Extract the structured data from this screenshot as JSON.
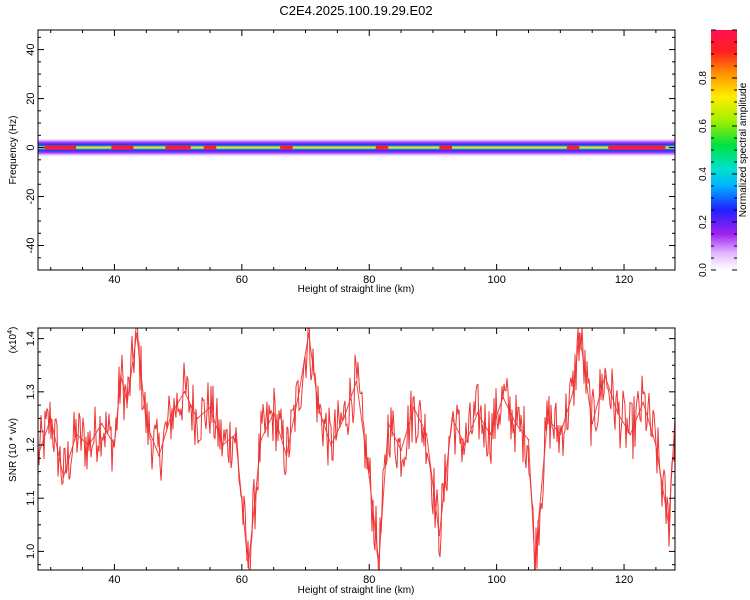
{
  "title": "C2E4.2025.100.19.29.E02",
  "colorbar": {
    "label": "Normalized spectral amplitude",
    "ticks": [
      "0.0",
      "0.2",
      "0.4",
      "0.6",
      "0.8"
    ],
    "tick_values": [
      0.0,
      0.2,
      0.4,
      0.6,
      0.8
    ]
  },
  "chart_data": [
    {
      "type": "heatmap",
      "xlabel": "Height of straight line (km)",
      "ylabel": "Frequency (Hz)",
      "xlim": [
        28,
        128
      ],
      "ylim": [
        -50,
        48
      ],
      "xticks": [
        40,
        60,
        80,
        100,
        120
      ],
      "yticks": [
        -40,
        -20,
        0,
        20,
        40
      ],
      "x_tick_labels": [
        "40",
        "60",
        "80",
        "100",
        "120"
      ],
      "y_tick_labels": [
        "-40",
        "-20",
        "0",
        "20",
        "40"
      ],
      "value_range": [
        0,
        1
      ],
      "band_center_hz": 0,
      "band_halfwidth_hz": 4,
      "peak_segments_km": [
        [
          29,
          34
        ],
        [
          39.5,
          43
        ],
        [
          48,
          52
        ],
        [
          54,
          56
        ],
        [
          66,
          68
        ],
        [
          81,
          83
        ],
        [
          91,
          93
        ],
        [
          111,
          113
        ],
        [
          117.5,
          126.5
        ]
      ]
    },
    {
      "type": "line",
      "xlabel": "Height of straight line (km)",
      "ylabel": "SNR (10 * v/v)",
      "y_scale_note": "(x10",
      "y_scale_exp": "4",
      "y_scale_close": ")",
      "xlim": [
        28,
        128
      ],
      "ylim": [
        0.965,
        1.42
      ],
      "xticks": [
        40,
        60,
        80,
        100,
        120
      ],
      "yticks": [
        1.0,
        1.1,
        1.2,
        1.3,
        1.4
      ],
      "x_tick_labels": [
        "40",
        "60",
        "80",
        "100",
        "120"
      ],
      "y_tick_labels": [
        "1.0",
        "1.1",
        "1.2",
        "1.3",
        "1.4"
      ],
      "color": "#ee3333",
      "x": [
        28,
        30,
        32,
        34,
        36,
        38,
        40,
        41,
        42,
        43.5,
        45,
        47,
        49,
        51,
        53,
        55,
        57,
        59,
        61,
        63,
        65,
        67,
        69,
        70.5,
        72,
        74,
        76,
        78,
        80,
        81.5,
        83,
        85,
        87,
        89,
        91,
        93,
        95,
        97,
        99,
        101,
        103,
        105,
        106,
        108,
        110,
        112,
        113,
        115,
        117,
        119,
        121,
        123,
        125,
        127,
        128
      ],
      "y": [
        1.18,
        1.25,
        1.14,
        1.22,
        1.2,
        1.24,
        1.2,
        1.33,
        1.28,
        1.41,
        1.24,
        1.18,
        1.26,
        1.3,
        1.25,
        1.27,
        1.2,
        1.22,
        0.97,
        1.21,
        1.26,
        1.18,
        1.3,
        1.41,
        1.27,
        1.2,
        1.25,
        1.32,
        1.14,
        0.98,
        1.24,
        1.19,
        1.27,
        1.22,
        1.03,
        1.25,
        1.2,
        1.26,
        1.22,
        1.29,
        1.24,
        1.21,
        0.98,
        1.25,
        1.22,
        1.3,
        1.41,
        1.24,
        1.33,
        1.26,
        1.22,
        1.28,
        1.2,
        1.05,
        1.25
      ]
    }
  ]
}
